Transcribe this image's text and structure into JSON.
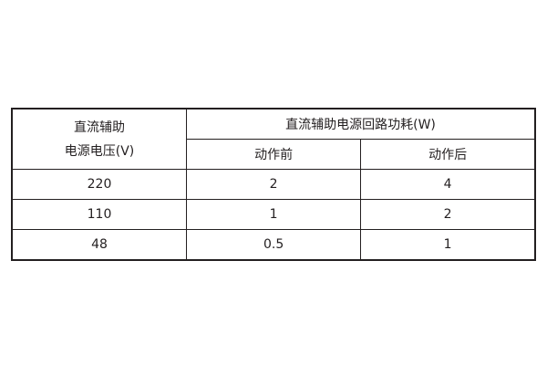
{
  "table": {
    "header": {
      "voltage_label_line1": "直流辅助",
      "voltage_label_line2": "电源电压(V)",
      "power_label": "直流辅助电源回路功耗(W)",
      "before_label": "动作前",
      "after_label": "动作后"
    },
    "rows": [
      {
        "voltage": "220",
        "before": "2",
        "after": "4"
      },
      {
        "voltage": "110",
        "before": "1",
        "after": "2"
      },
      {
        "voltage": "48",
        "before": "0.5",
        "after": "1"
      }
    ]
  }
}
